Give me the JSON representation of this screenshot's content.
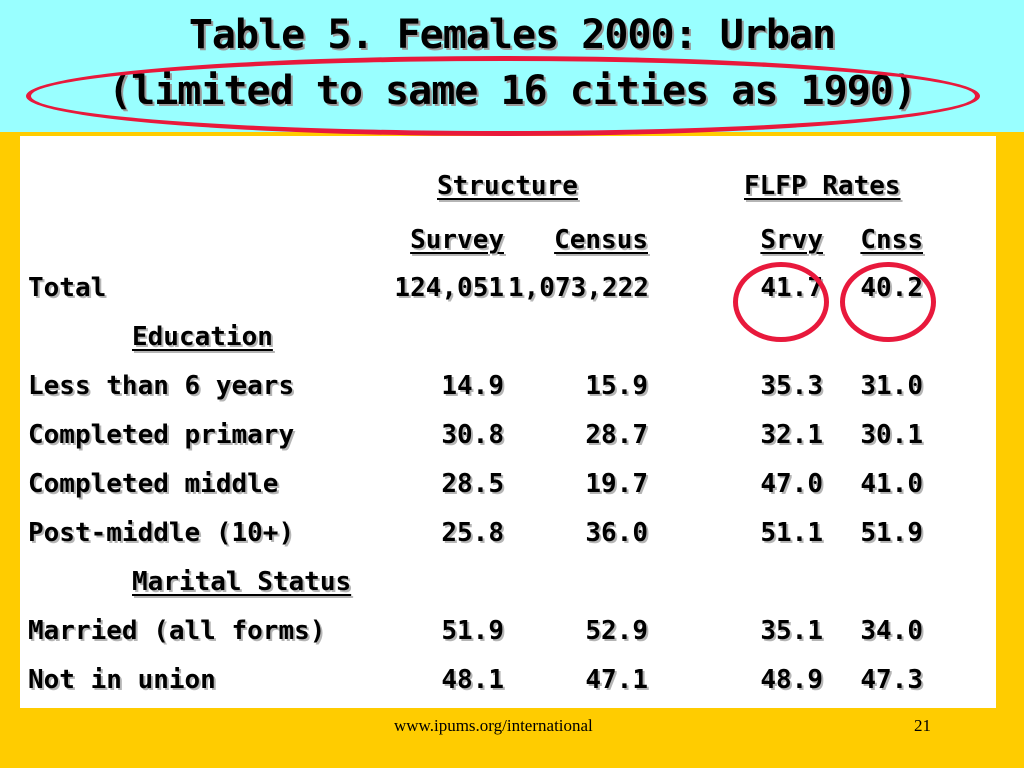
{
  "title": {
    "line1": "Table 5.  Females 2000:  Urban",
    "line2": "(limited to same 16 cities as 1990)"
  },
  "header": {
    "structure": "Structure",
    "flfp": "FLFP Rates",
    "survey": "Survey",
    "census": "Census",
    "srvy": "Srvy",
    "cnss": "Cnss"
  },
  "rows": [
    {
      "label": "Total",
      "survey": "124,051",
      "census": "1,073,222",
      "srvy": "41.7",
      "cnss": "40.2"
    },
    {
      "section": "Education"
    },
    {
      "label": "Less than 6 years",
      "survey": "14.9",
      "census": "15.9",
      "srvy": "35.3",
      "cnss": "31.0"
    },
    {
      "label": "Completed primary",
      "survey": "30.8",
      "census": "28.7",
      "srvy": "32.1",
      "cnss": "30.1"
    },
    {
      "label": "Completed middle",
      "survey": "28.5",
      "census": "19.7",
      "srvy": "47.0",
      "cnss": "41.0"
    },
    {
      "label": "Post-middle (10+)",
      "survey": "25.8",
      "census": "36.0",
      "srvy": "51.1",
      "cnss": "51.9"
    },
    {
      "section": "Marital Status"
    },
    {
      "label": "Married (all forms)",
      "survey": "51.9",
      "census": "52.9",
      "srvy": "35.1",
      "cnss": "34.0"
    },
    {
      "label": "Not in union",
      "survey": "48.1",
      "census": "47.1",
      "srvy": "48.9",
      "cnss": "47.3"
    }
  ],
  "footer": {
    "url": "www.ipums.org/international",
    "page": "21"
  },
  "colors": {
    "title_background": "#99ffff",
    "slide_background": "#ffcc00",
    "highlight_ring": "#e8193c"
  }
}
